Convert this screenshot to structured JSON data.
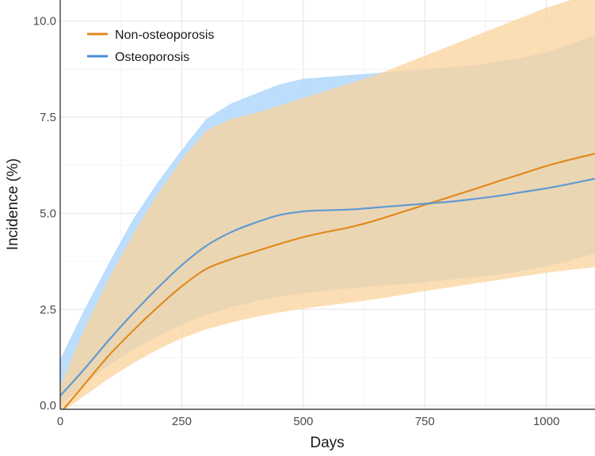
{
  "chart_data": {
    "type": "line",
    "title": "",
    "xlabel": "Days",
    "ylabel": "Incidence (%)",
    "xlim": [
      0,
      1100
    ],
    "ylim": [
      -0.1,
      10.55
    ],
    "grid": true,
    "legend_position": "top-left",
    "x_ticks": [
      0,
      250,
      500,
      750,
      1000
    ],
    "x_tick_labels": [
      "0",
      "250",
      "500",
      "750",
      "1000"
    ],
    "y_ticks": [
      0,
      2.5,
      5,
      7.5,
      10
    ],
    "y_tick_labels": [
      "0.0",
      "2.5",
      "5.0",
      "7.5",
      "10.0"
    ],
    "series": [
      {
        "name": "Osteoporosis",
        "color": "#4A8FD6",
        "band_color": "#B8DBFB",
        "x": [
          0,
          50,
          100,
          150,
          200,
          250,
          300,
          350,
          400,
          450,
          500,
          550,
          600,
          650,
          700,
          750,
          800,
          850,
          900,
          950,
          1000,
          1050,
          1100
        ],
        "y": [
          0.25,
          0.95,
          1.7,
          2.4,
          3.05,
          3.65,
          4.15,
          4.5,
          4.75,
          4.95,
          5.05,
          5.08,
          5.1,
          5.15,
          5.2,
          5.25,
          5.3,
          5.37,
          5.45,
          5.55,
          5.65,
          5.77,
          5.9
        ],
        "lower": [
          0.0,
          0.55,
          1.05,
          1.45,
          1.8,
          2.1,
          2.35,
          2.55,
          2.7,
          2.83,
          2.92,
          2.99,
          3.05,
          3.1,
          3.15,
          3.2,
          3.27,
          3.33,
          3.4,
          3.5,
          3.62,
          3.78,
          3.95
        ],
        "upper": [
          1.2,
          2.5,
          3.7,
          4.85,
          5.8,
          6.65,
          7.45,
          7.85,
          8.1,
          8.35,
          8.5,
          8.55,
          8.6,
          8.65,
          8.7,
          8.75,
          8.8,
          8.85,
          8.95,
          9.05,
          9.2,
          9.4,
          9.65
        ]
      },
      {
        "name": "Non-osteoporosis",
        "color": "#E08A1E",
        "band_color": "#FBD39C",
        "x": [
          0,
          50,
          100,
          150,
          200,
          250,
          300,
          350,
          400,
          450,
          500,
          550,
          600,
          650,
          700,
          750,
          800,
          850,
          900,
          950,
          1000,
          1050,
          1100
        ],
        "y": [
          -0.2,
          0.55,
          1.3,
          1.95,
          2.55,
          3.1,
          3.55,
          3.8,
          4.0,
          4.2,
          4.38,
          4.52,
          4.65,
          4.82,
          5.02,
          5.22,
          5.42,
          5.62,
          5.83,
          6.03,
          6.23,
          6.4,
          6.55
        ],
        "lower": [
          -0.2,
          0.25,
          0.7,
          1.1,
          1.45,
          1.75,
          1.98,
          2.15,
          2.3,
          2.42,
          2.52,
          2.6,
          2.68,
          2.77,
          2.87,
          2.98,
          3.07,
          3.17,
          3.26,
          3.36,
          3.45,
          3.53,
          3.6
        ],
        "upper": [
          0.5,
          2.0,
          3.3,
          4.45,
          5.5,
          6.4,
          7.15,
          7.45,
          7.6,
          7.8,
          8.0,
          8.2,
          8.4,
          8.6,
          8.85,
          9.1,
          9.35,
          9.6,
          9.85,
          10.1,
          10.35,
          10.55,
          10.8
        ]
      }
    ]
  }
}
